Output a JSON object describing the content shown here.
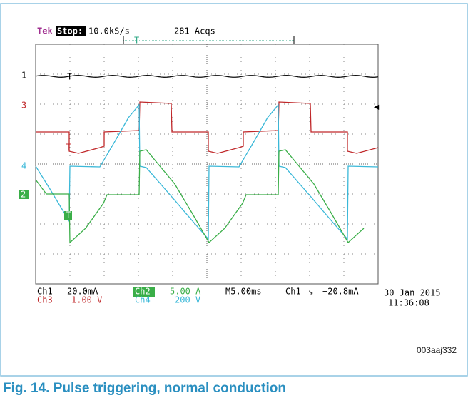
{
  "header": {
    "brand": "Tek",
    "state": "Stop:",
    "rate": "10.0kS/s",
    "acqs": "281 Acqs",
    "trigger_marker": "T"
  },
  "channels": {
    "ch1": "1",
    "ch3": "3",
    "ch4": "4",
    "ch2": "2"
  },
  "readout": {
    "ch1_name": "Ch1",
    "ch1_scale": "20.0mA",
    "ch2_name": "Ch2",
    "ch2_scale": "5.00 A",
    "ch3_name": "Ch3",
    "ch3_scale": "1.00 V",
    "ch4_name": "Ch4",
    "ch4_scale": "200 V",
    "timebase": "M5.00ms",
    "trigger_source": "Ch1",
    "trigger_level": "−20.8mA"
  },
  "date": "30 Jan 2015",
  "time": "11:36:08",
  "figure_id": "003aaj332",
  "caption": "Fig. 14. Pulse triggering, normal conduction"
}
